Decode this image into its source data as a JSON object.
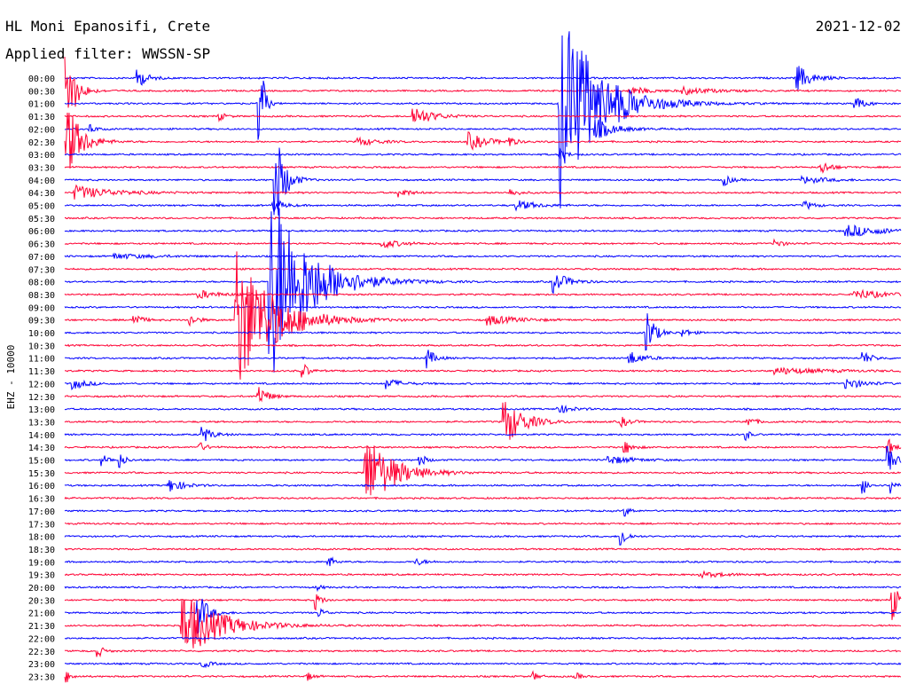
{
  "header": {
    "station": "HL Moni Epanosifi, Crete",
    "date": "2021-12-02",
    "filter": "Applied filter: WWSSN-SP"
  },
  "colors": {
    "even_row": "#0000ff",
    "odd_row": "#ff0033",
    "background": "#ffffff",
    "text": "#000000"
  },
  "chart_data": {
    "type": "line",
    "ylabel": "EHZ - 10000",
    "rows": [
      "00:00",
      "00:30",
      "01:00",
      "01:30",
      "02:00",
      "02:30",
      "03:00",
      "03:30",
      "04:00",
      "04:30",
      "05:00",
      "05:30",
      "06:00",
      "06:30",
      "07:00",
      "07:30",
      "08:00",
      "08:30",
      "09:00",
      "09:30",
      "10:00",
      "10:30",
      "11:00",
      "11:30",
      "12:00",
      "12:30",
      "13:00",
      "13:30",
      "14:00",
      "14:30",
      "15:00",
      "15:30",
      "16:00",
      "16:30",
      "17:00",
      "17:30",
      "18:00",
      "18:30",
      "19:00",
      "19:30",
      "20:00",
      "20:30",
      "21:00",
      "21:30",
      "22:00",
      "22:30",
      "23:00",
      "23:30"
    ],
    "row_minutes": 30,
    "events": [
      {
        "row": 0,
        "t": 0.087,
        "amp": 12,
        "dur": 0.01
      },
      {
        "row": 0,
        "t": 0.875,
        "amp": 16,
        "dur": 0.015
      },
      {
        "row": 1,
        "t": 0.002,
        "amp": 50,
        "dur": 0.01
      },
      {
        "row": 1,
        "t": 0.675,
        "amp": 5,
        "dur": 0.02
      },
      {
        "row": 1,
        "t": 0.74,
        "amp": 4,
        "dur": 0.03
      },
      {
        "row": 2,
        "t": 0.592,
        "amp": 120,
        "dur": 0.04
      },
      {
        "row": 2,
        "t": 0.233,
        "amp": 90,
        "dur": 0.004
      },
      {
        "row": 2,
        "t": 0.945,
        "amp": 8,
        "dur": 0.01
      },
      {
        "row": 3,
        "t": 0.185,
        "amp": 5,
        "dur": 0.006
      },
      {
        "row": 3,
        "t": 0.417,
        "amp": 12,
        "dur": 0.02
      },
      {
        "row": 4,
        "t": 0.03,
        "amp": 6,
        "dur": 0.006
      },
      {
        "row": 4,
        "t": 0.635,
        "amp": 12,
        "dur": 0.02
      },
      {
        "row": 5,
        "t": 0.003,
        "amp": 45,
        "dur": 0.015
      },
      {
        "row": 5,
        "t": 0.35,
        "amp": 5,
        "dur": 0.02
      },
      {
        "row": 5,
        "t": 0.483,
        "amp": 10,
        "dur": 0.02
      },
      {
        "row": 5,
        "t": 0.533,
        "amp": 6,
        "dur": 0.005
      },
      {
        "row": 6,
        "t": 0.592,
        "amp": 6,
        "dur": 0.008
      },
      {
        "row": 7,
        "t": 0.905,
        "amp": 8,
        "dur": 0.01
      },
      {
        "row": 8,
        "t": 0.252,
        "amp": 60,
        "dur": 0.01
      },
      {
        "row": 8,
        "t": 0.788,
        "amp": 7,
        "dur": 0.008
      },
      {
        "row": 8,
        "t": 0.883,
        "amp": 4,
        "dur": 0.025
      },
      {
        "row": 9,
        "t": 0.012,
        "amp": 8,
        "dur": 0.04
      },
      {
        "row": 9,
        "t": 0.4,
        "amp": 6,
        "dur": 0.01
      },
      {
        "row": 9,
        "t": 0.533,
        "amp": 4,
        "dur": 0.01
      },
      {
        "row": 10,
        "t": 0.25,
        "amp": 8,
        "dur": 0.01
      },
      {
        "row": 10,
        "t": 0.54,
        "amp": 6,
        "dur": 0.02
      },
      {
        "row": 10,
        "t": 0.885,
        "amp": 5,
        "dur": 0.01
      },
      {
        "row": 12,
        "t": 0.935,
        "amp": 7,
        "dur": 0.04
      },
      {
        "row": 13,
        "t": 0.38,
        "amp": 5,
        "dur": 0.02
      },
      {
        "row": 13,
        "t": 0.85,
        "amp": 5,
        "dur": 0.008
      },
      {
        "row": 14,
        "t": 0.06,
        "amp": 3,
        "dur": 0.04
      },
      {
        "row": 16,
        "t": 0.245,
        "amp": 120,
        "dur": 0.04
      },
      {
        "row": 16,
        "t": 0.585,
        "amp": 12,
        "dur": 0.015
      },
      {
        "row": 17,
        "t": 0.16,
        "amp": 5,
        "dur": 0.02
      },
      {
        "row": 17,
        "t": 0.945,
        "amp": 6,
        "dur": 0.03
      },
      {
        "row": 19,
        "t": 0.205,
        "amp": 85,
        "dur": 0.04
      },
      {
        "row": 19,
        "t": 0.082,
        "amp": 10,
        "dur": 0.008
      },
      {
        "row": 19,
        "t": 0.15,
        "amp": 7,
        "dur": 0.008
      },
      {
        "row": 19,
        "t": 0.505,
        "amp": 6,
        "dur": 0.03
      },
      {
        "row": 20,
        "t": 0.696,
        "amp": 30,
        "dur": 0.008
      },
      {
        "row": 20,
        "t": 0.74,
        "amp": 5,
        "dur": 0.008
      },
      {
        "row": 22,
        "t": 0.433,
        "amp": 12,
        "dur": 0.008
      },
      {
        "row": 22,
        "t": 0.675,
        "amp": 8,
        "dur": 0.015
      },
      {
        "row": 22,
        "t": 0.955,
        "amp": 7,
        "dur": 0.01
      },
      {
        "row": 23,
        "t": 0.285,
        "amp": 10,
        "dur": 0.006
      },
      {
        "row": 23,
        "t": 0.85,
        "amp": 4,
        "dur": 0.05
      },
      {
        "row": 24,
        "t": 0.01,
        "amp": 6,
        "dur": 0.015
      },
      {
        "row": 24,
        "t": 0.385,
        "amp": 6,
        "dur": 0.015
      },
      {
        "row": 24,
        "t": 0.935,
        "amp": 6,
        "dur": 0.02
      },
      {
        "row": 25,
        "t": 0.232,
        "amp": 12,
        "dur": 0.01
      },
      {
        "row": 26,
        "t": 0.59,
        "amp": 5,
        "dur": 0.015
      },
      {
        "row": 27,
        "t": 0.525,
        "amp": 30,
        "dur": 0.02
      },
      {
        "row": 27,
        "t": 0.665,
        "amp": 6,
        "dur": 0.01
      },
      {
        "row": 27,
        "t": 0.815,
        "amp": 6,
        "dur": 0.01
      },
      {
        "row": 28,
        "t": 0.165,
        "amp": 10,
        "dur": 0.01
      },
      {
        "row": 28,
        "t": 0.815,
        "amp": 7,
        "dur": 0.004
      },
      {
        "row": 29,
        "t": 0.16,
        "amp": 6,
        "dur": 0.008
      },
      {
        "row": 29,
        "t": 0.67,
        "amp": 8,
        "dur": 0.008
      },
      {
        "row": 29,
        "t": 0.985,
        "amp": 10,
        "dur": 0.006
      },
      {
        "row": 30,
        "t": 0.045,
        "amp": 6,
        "dur": 0.008
      },
      {
        "row": 30,
        "t": 0.066,
        "amp": 8,
        "dur": 0.006
      },
      {
        "row": 30,
        "t": 0.425,
        "amp": 8,
        "dur": 0.006
      },
      {
        "row": 30,
        "t": 0.65,
        "amp": 5,
        "dur": 0.025
      },
      {
        "row": 30,
        "t": 0.985,
        "amp": 15,
        "dur": 0.008
      },
      {
        "row": 31,
        "t": 0.36,
        "amp": 45,
        "dur": 0.03
      },
      {
        "row": 32,
        "t": 0.125,
        "amp": 8,
        "dur": 0.015
      },
      {
        "row": 32,
        "t": 0.955,
        "amp": 10,
        "dur": 0.006
      },
      {
        "row": 32,
        "t": 0.988,
        "amp": 12,
        "dur": 0.006
      },
      {
        "row": 34,
        "t": 0.67,
        "amp": 6,
        "dur": 0.006
      },
      {
        "row": 36,
        "t": 0.665,
        "amp": 15,
        "dur": 0.006
      },
      {
        "row": 38,
        "t": 0.315,
        "amp": 8,
        "dur": 0.006
      },
      {
        "row": 38,
        "t": 0.42,
        "amp": 4,
        "dur": 0.01
      },
      {
        "row": 39,
        "t": 0.76,
        "amp": 3,
        "dur": 0.03
      },
      {
        "row": 40,
        "t": 0.3,
        "amp": 4,
        "dur": 0.006
      },
      {
        "row": 41,
        "t": 0.3,
        "amp": 10,
        "dur": 0.006
      },
      {
        "row": 41,
        "t": 0.99,
        "amp": 25,
        "dur": 0.006
      },
      {
        "row": 42,
        "t": 0.16,
        "amp": 25,
        "dur": 0.01
      },
      {
        "row": 42,
        "t": 0.305,
        "amp": 5,
        "dur": 0.006
      },
      {
        "row": 43,
        "t": 0.14,
        "amp": 40,
        "dur": 0.04
      },
      {
        "row": 45,
        "t": 0.04,
        "amp": 7,
        "dur": 0.006
      },
      {
        "row": 46,
        "t": 0.165,
        "amp": 5,
        "dur": 0.008
      },
      {
        "row": 47,
        "t": 0.003,
        "amp": 6,
        "dur": 0.006
      },
      {
        "row": 47,
        "t": 0.29,
        "amp": 5,
        "dur": 0.006
      },
      {
        "row": 47,
        "t": 0.56,
        "amp": 5,
        "dur": 0.006
      },
      {
        "row": 47,
        "t": 0.61,
        "amp": 5,
        "dur": 0.006
      }
    ]
  }
}
